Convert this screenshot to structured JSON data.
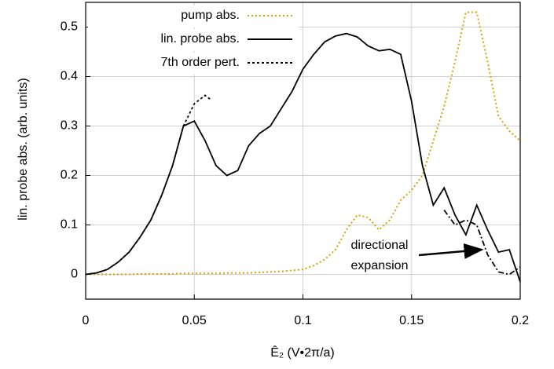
{
  "chart_data": {
    "type": "line",
    "xlabel": "Ê₂ (V•2π/a)",
    "ylabel": "lin. probe abs. (arb. units)",
    "xlim": [
      0,
      0.2
    ],
    "ylim": [
      -0.05,
      0.55
    ],
    "xticks": [
      0,
      0.05,
      0.1,
      0.15,
      0.2
    ],
    "yticks": [
      0,
      0.1,
      0.2,
      0.3,
      0.4,
      0.5
    ],
    "grid": true,
    "legend": "top-left",
    "annotation": [
      "directional",
      "expansion"
    ],
    "series": [
      {
        "name": "pump abs.",
        "color": "#e0a000",
        "style": "dotted",
        "x": [
          0,
          0.005,
          0.01,
          0.015,
          0.02,
          0.025,
          0.03,
          0.035,
          0.04,
          0.045,
          0.05,
          0.055,
          0.06,
          0.065,
          0.07,
          0.075,
          0.08,
          0.085,
          0.09,
          0.095,
          0.1,
          0.105,
          0.11,
          0.115,
          0.12,
          0.125,
          0.13,
          0.135,
          0.14,
          0.145,
          0.15,
          0.155,
          0.16,
          0.165,
          0.17,
          0.175,
          0.18,
          0.185,
          0.19,
          0.195,
          0.2
        ],
        "values": [
          0,
          0,
          0,
          0,
          0,
          0.001,
          0.001,
          0.001,
          0.001,
          0.002,
          0.002,
          0.002,
          0.002,
          0.003,
          0.003,
          0.003,
          0.004,
          0.005,
          0.006,
          0.008,
          0.01,
          0.018,
          0.03,
          0.05,
          0.09,
          0.12,
          0.115,
          0.09,
          0.11,
          0.15,
          0.17,
          0.2,
          0.27,
          0.34,
          0.43,
          0.53,
          0.53,
          0.43,
          0.32,
          0.29,
          0.27
        ]
      },
      {
        "name": "lin. probe abs.",
        "color": "#000000",
        "style": "solid",
        "x": [
          0,
          0.005,
          0.01,
          0.015,
          0.02,
          0.025,
          0.03,
          0.035,
          0.04,
          0.045,
          0.05,
          0.055,
          0.06,
          0.065,
          0.07,
          0.075,
          0.08,
          0.085,
          0.09,
          0.095,
          0.1,
          0.105,
          0.11,
          0.115,
          0.12,
          0.125,
          0.13,
          0.135,
          0.14,
          0.145,
          0.15,
          0.155,
          0.16,
          0.165,
          0.17,
          0.175,
          0.18,
          0.185,
          0.19,
          0.195,
          0.2
        ],
        "values": [
          0,
          0.003,
          0.01,
          0.025,
          0.045,
          0.075,
          0.11,
          0.16,
          0.22,
          0.3,
          0.31,
          0.27,
          0.22,
          0.2,
          0.21,
          0.26,
          0.285,
          0.3,
          0.335,
          0.37,
          0.415,
          0.445,
          0.47,
          0.482,
          0.487,
          0.48,
          0.462,
          0.452,
          0.455,
          0.445,
          0.35,
          0.22,
          0.14,
          0.175,
          0.12,
          0.08,
          0.14,
          0.09,
          0.045,
          0.05,
          -0.015
        ]
      },
      {
        "name": "7th order pert.",
        "color": "#000000",
        "style": "dashed",
        "x": [
          0,
          0.005,
          0.01,
          0.015,
          0.02,
          0.025,
          0.03,
          0.035,
          0.04,
          0.045,
          0.05,
          0.055,
          0.058
        ],
        "values": [
          0,
          0.003,
          0.01,
          0.025,
          0.045,
          0.075,
          0.11,
          0.16,
          0.22,
          0.3,
          0.345,
          0.362,
          0.352
        ]
      },
      {
        "color": "#000000",
        "style": "dashdot",
        "x": [
          0.165,
          0.17,
          0.175,
          0.18,
          0.185,
          0.19,
          0.195,
          0.2
        ],
        "values": [
          0.13,
          0.1,
          0.11,
          0.1,
          0.04,
          0.005,
          0,
          0.015
        ]
      }
    ]
  }
}
